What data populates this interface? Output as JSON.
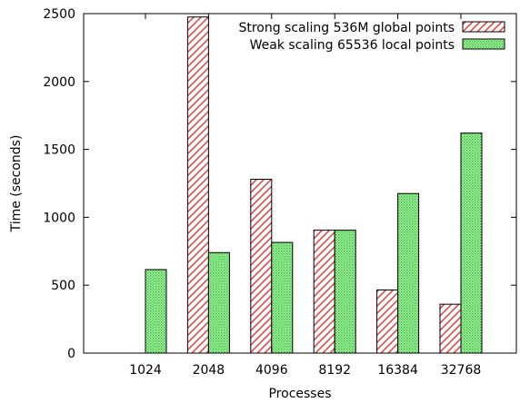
{
  "chart_data": {
    "type": "bar",
    "title": "",
    "xlabel": "Processes",
    "ylabel": "Time (seconds)",
    "categories": [
      "1024",
      "2048",
      "4096",
      "8192",
      "16384",
      "32768"
    ],
    "ylim": [
      0,
      2500
    ],
    "yticks": [
      0,
      500,
      1000,
      1500,
      2000,
      2500
    ],
    "grid": false,
    "legend_position": "top-right",
    "series": [
      {
        "name": "Strong scaling 536M global points",
        "values": [
          null,
          2475,
          1280,
          905,
          465,
          360
        ],
        "fill": "hatched",
        "color": "#e84a4a"
      },
      {
        "name": "Weak scaling 65536 local points",
        "values": [
          615,
          740,
          815,
          905,
          1175,
          1620
        ],
        "fill": "dotted",
        "color": "#44cc44"
      }
    ]
  }
}
